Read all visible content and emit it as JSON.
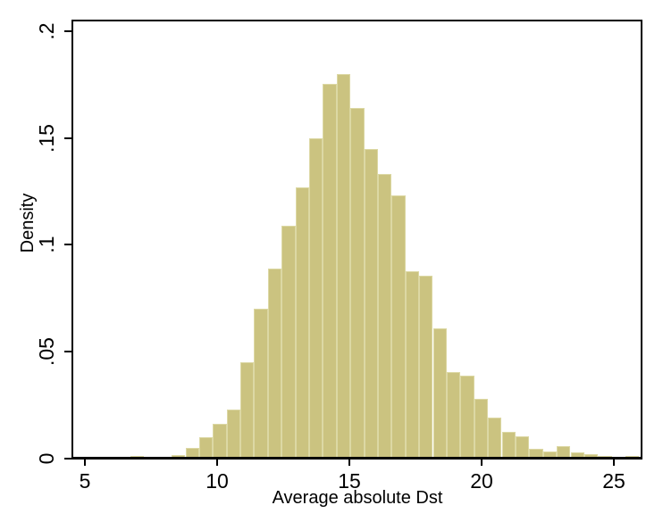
{
  "chart_data": {
    "type": "bar",
    "subtype": "histogram",
    "title": "",
    "xlabel": "Average absolute Dst",
    "ylabel": "Density",
    "x_ticks": [
      {
        "value": 5,
        "label": "5"
      },
      {
        "value": 10,
        "label": "10"
      },
      {
        "value": 15,
        "label": "15"
      },
      {
        "value": 20,
        "label": "20"
      },
      {
        "value": 25,
        "label": "25"
      }
    ],
    "y_ticks": [
      {
        "value": 0.0,
        "label": "0"
      },
      {
        "value": 0.05,
        "label": ".05"
      },
      {
        "value": 0.1,
        "label": ".1"
      },
      {
        "value": 0.15,
        "label": ".15"
      },
      {
        "value": 0.2,
        "label": ".2"
      }
    ],
    "xlim": [
      4.56,
      26.05
    ],
    "ylim": [
      0,
      0.205
    ],
    "grid": false,
    "legend": null,
    "bin_start": 6.72,
    "bin_width": 0.52,
    "densities": [
      0.001,
      0.0007,
      0.0003,
      0.0015,
      0.005,
      0.01,
      0.016,
      0.023,
      0.045,
      0.07,
      0.089,
      0.109,
      0.127,
      0.15,
      0.1755,
      0.18,
      0.164,
      0.145,
      0.133,
      0.123,
      0.0877,
      0.0856,
      0.061,
      0.0403,
      0.0389,
      0.0277,
      0.019,
      0.0124,
      0.0103,
      0.0046,
      0.0033,
      0.0056,
      0.0028,
      0.0021,
      0.0011,
      0.0,
      0.001
    ],
    "colors": {
      "bar_fill": "#CBC380",
      "bar_outline": "#DCD8A4",
      "axis": "#000000",
      "background": "#FFFFFF",
      "text": "#000000"
    }
  }
}
